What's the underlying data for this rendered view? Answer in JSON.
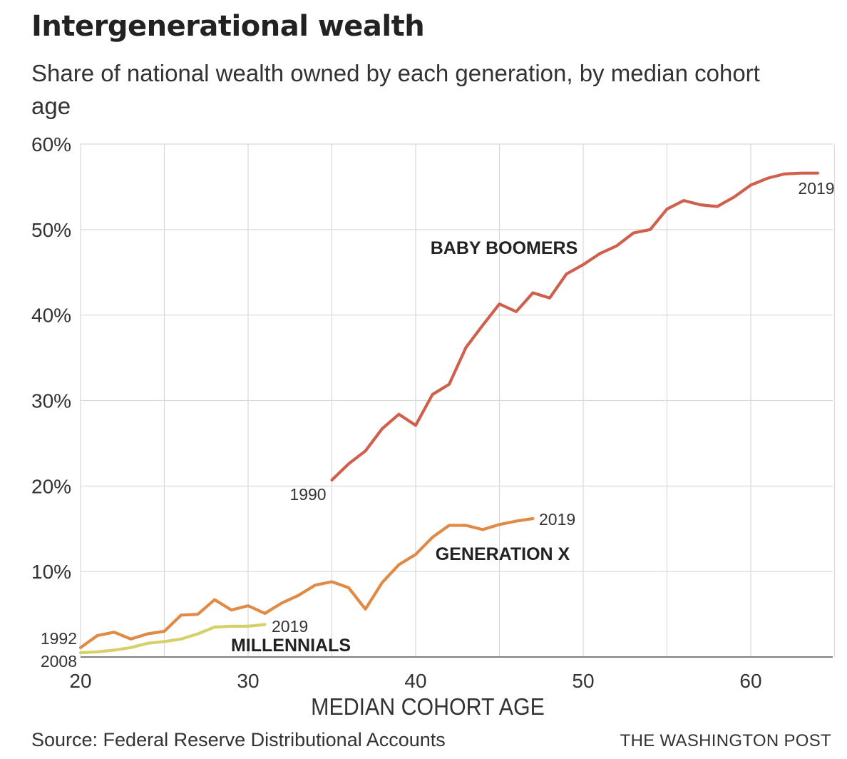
{
  "header": {
    "title": "Intergenerational wealth",
    "subtitle": "Share of national wealth owned by each generation, by median cohort age"
  },
  "footer": {
    "source": "Source: Federal Reserve Distributional Accounts",
    "credit": "THE WASHINGTON POST"
  },
  "chart_data": {
    "type": "line",
    "title": "Intergenerational wealth",
    "subtitle": "Share of national wealth owned by each generation, by median cohort age",
    "xlabel": "MEDIAN COHORT AGE",
    "ylabel": "",
    "xlim": [
      20,
      65
    ],
    "ylim": [
      0,
      60
    ],
    "x_ticks": [
      20,
      30,
      40,
      50,
      60
    ],
    "x_tick_labels": [
      "20",
      "30",
      "40",
      "50",
      "60"
    ],
    "y_ticks": [
      10,
      20,
      30,
      40,
      50,
      60
    ],
    "y_tick_labels": [
      "10%",
      "20%",
      "30%",
      "40%",
      "50%",
      "60%"
    ],
    "grid": true,
    "legend": "none",
    "series": [
      {
        "name": "BABY BOOMERS",
        "color": "#d0604e",
        "start_label": "1990",
        "end_label": "2019",
        "x": [
          35,
          36,
          37,
          38,
          39,
          40,
          41,
          42,
          43,
          44,
          45,
          46,
          47,
          48,
          49,
          50,
          51,
          52,
          53,
          54,
          55,
          56,
          57,
          58,
          59,
          60,
          61,
          62,
          63,
          64
        ],
        "y": [
          20.7,
          22.6,
          24.1,
          26.7,
          28.4,
          27.1,
          30.7,
          31.9,
          36.2,
          38.8,
          41.3,
          40.4,
          42.6,
          42.0,
          44.8,
          45.9,
          47.2,
          48.1,
          49.6,
          50.0,
          52.4,
          53.4,
          52.9,
          52.7,
          53.8,
          55.2,
          56.0,
          56.5,
          56.6,
          56.6
        ]
      },
      {
        "name": "GENERATION X",
        "color": "#e08a45",
        "start_label": "1992",
        "end_label": "2019",
        "x": [
          20,
          21,
          22,
          23,
          24,
          25,
          26,
          27,
          28,
          29,
          30,
          31,
          32,
          33,
          34,
          35,
          36,
          37,
          38,
          39,
          40,
          41,
          42,
          43,
          44,
          45,
          46,
          47
        ],
        "y": [
          1.1,
          2.5,
          2.9,
          2.1,
          2.7,
          3.0,
          4.9,
          5.0,
          6.7,
          5.5,
          6.0,
          5.1,
          6.3,
          7.2,
          8.4,
          8.8,
          8.1,
          5.6,
          8.7,
          10.8,
          12.0,
          14.0,
          15.4,
          15.4,
          14.9,
          15.5,
          15.9,
          16.2
        ]
      },
      {
        "name": "MILLENNIALS",
        "color": "#d5d06a",
        "start_label": "2008",
        "end_label": "2019",
        "x": [
          20,
          21,
          22,
          23,
          24,
          25,
          26,
          27,
          28,
          29,
          30,
          31
        ],
        "y": [
          0.5,
          0.6,
          0.8,
          1.1,
          1.6,
          1.8,
          2.1,
          2.7,
          3.5,
          3.6,
          3.6,
          3.8
        ]
      }
    ]
  }
}
